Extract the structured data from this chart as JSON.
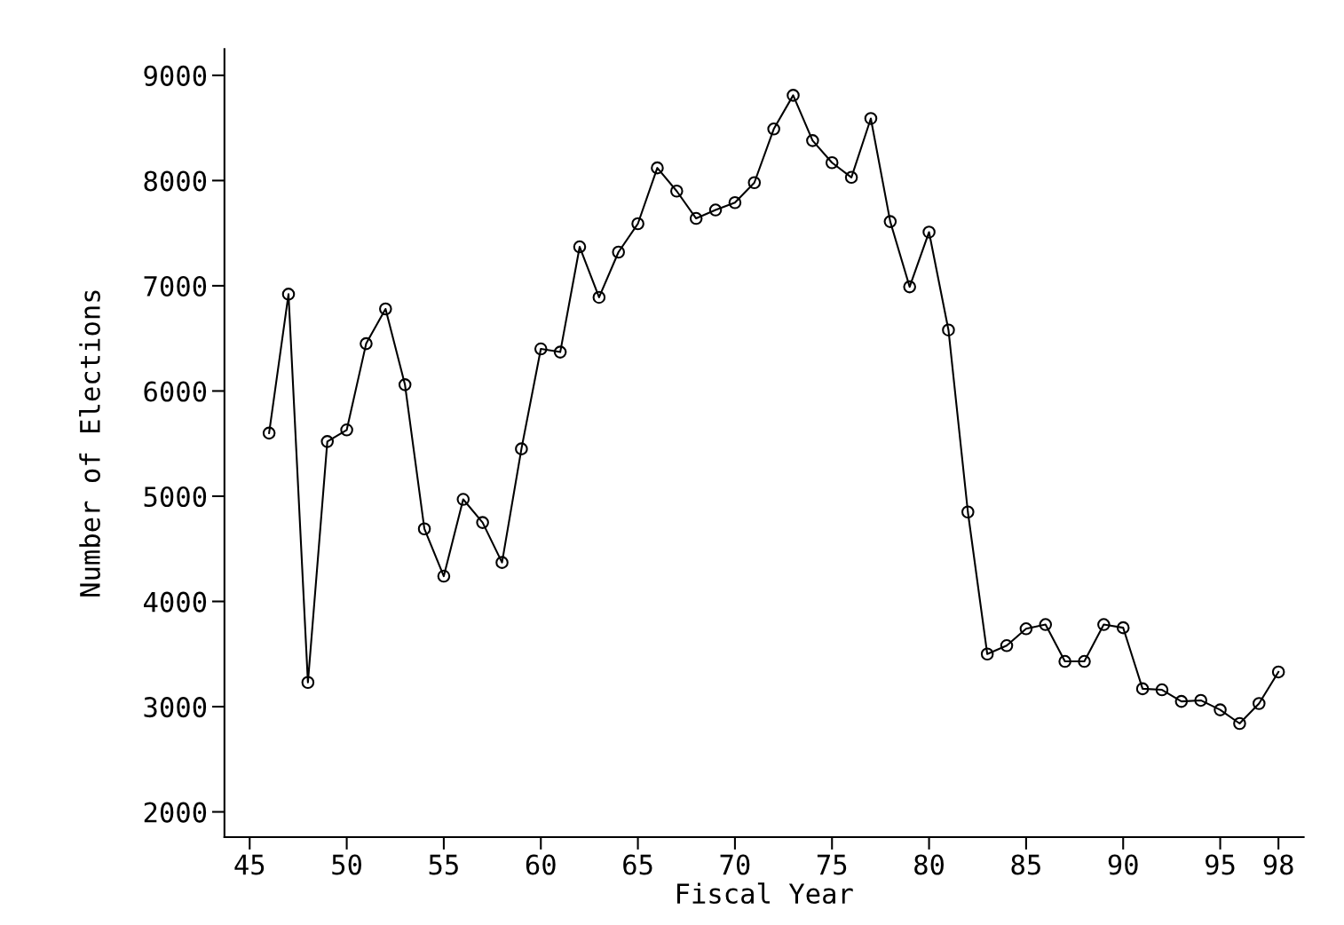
{
  "chart_data": {
    "type": "line",
    "xlabel": "Fiscal Year",
    "ylabel": "Number of Elections",
    "x": [
      46,
      47,
      48,
      49,
      50,
      51,
      52,
      53,
      54,
      55,
      56,
      57,
      58,
      59,
      60,
      61,
      62,
      63,
      64,
      65,
      66,
      67,
      68,
      69,
      70,
      71,
      72,
      73,
      74,
      75,
      76,
      77,
      78,
      79,
      80,
      81,
      82,
      83,
      84,
      85,
      86,
      87,
      88,
      89,
      90,
      91,
      92,
      93,
      94,
      95,
      96,
      97,
      98
    ],
    "series": [
      {
        "color": "#000000",
        "values": [
          5600,
          6920,
          3230,
          5520,
          5630,
          6450,
          6780,
          6060,
          4690,
          4240,
          4970,
          4750,
          4370,
          5450,
          6400,
          6370,
          7370,
          6890,
          7320,
          7590,
          8120,
          7900,
          7640,
          7720,
          7790,
          7980,
          8490,
          8810,
          8380,
          8170,
          8030,
          8590,
          7610,
          6990,
          7510,
          6580,
          4850,
          3500,
          3580,
          3740,
          3780,
          3430,
          3430,
          3780,
          3750,
          3170,
          3160,
          3050,
          3060,
          2970,
          2840,
          3030,
          3330
        ]
      }
    ],
    "xlim": [
      43.7,
      99.3
    ],
    "xticks": [
      45,
      50,
      55,
      60,
      65,
      70,
      75,
      80,
      85,
      90,
      95,
      98
    ],
    "ylim": [
      1760,
      9250
    ],
    "yticks": [
      2000,
      3000,
      4000,
      5000,
      6000,
      7000,
      8000,
      9000
    ],
    "marker": "circle",
    "line_style": "solid",
    "grid": false,
    "legend": false
  }
}
